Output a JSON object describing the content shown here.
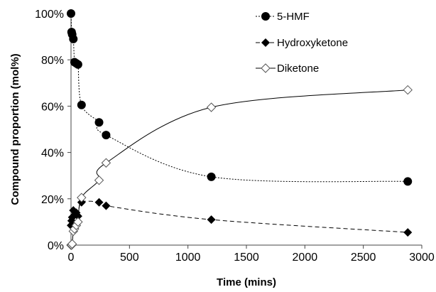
{
  "chart_data": {
    "type": "scatter",
    "title": "",
    "xlabel": "Time (mins)",
    "ylabel": "Compound proportion (mol%)",
    "xlim": [
      0,
      3000
    ],
    "ylim": [
      0,
      100
    ],
    "x_ticks": [
      "0",
      "500",
      "1000",
      "1500",
      "2000",
      "2500",
      "3000"
    ],
    "y_ticks": [
      "0%",
      "20%",
      "40%",
      "60%",
      "80%",
      "100%"
    ],
    "grid": false,
    "legend_position": "top-right",
    "series": [
      {
        "name": "5-HMF",
        "marker": "filled-circle",
        "line": "dotted",
        "color": "#000000",
        "x": [
          0,
          5,
          10,
          20,
          30,
          45,
          60,
          90,
          240,
          300,
          1200,
          2880
        ],
        "y": [
          100,
          92,
          91,
          89,
          79,
          78.5,
          78,
          60.5,
          53,
          47.5,
          29.5,
          27.5
        ]
      },
      {
        "name": "Hydroxyketone",
        "marker": "filled-diamond",
        "line": "dashed",
        "color": "#000000",
        "x": [
          0,
          5,
          10,
          20,
          30,
          45,
          60,
          90,
          240,
          300,
          1200,
          2880
        ],
        "y": [
          8.5,
          10.5,
          12,
          15,
          13,
          14,
          12.5,
          18.5,
          18.5,
          17,
          11,
          5.5
        ]
      },
      {
        "name": "Diketone",
        "marker": "open-diamond",
        "line": "solid",
        "color": "#000000",
        "x": [
          0,
          5,
          10,
          20,
          30,
          45,
          60,
          90,
          240,
          300,
          1200,
          2880
        ],
        "y": [
          0,
          0,
          0.5,
          6,
          7,
          8.5,
          10,
          20.5,
          28,
          35.5,
          59.5,
          67
        ]
      }
    ]
  }
}
